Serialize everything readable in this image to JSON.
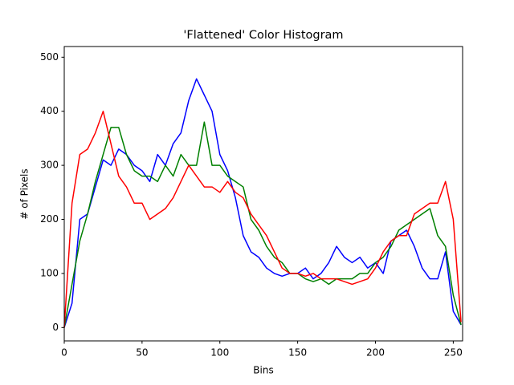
{
  "chart_data": {
    "type": "line",
    "title": "'Flattened' Color Histogram",
    "x_label": "Bins",
    "y_label": "# of Pixels",
    "x": [
      0,
      5,
      10,
      15,
      20,
      25,
      30,
      35,
      40,
      45,
      50,
      55,
      60,
      65,
      70,
      75,
      80,
      85,
      90,
      95,
      100,
      105,
      110,
      115,
      120,
      125,
      130,
      135,
      140,
      145,
      150,
      155,
      160,
      165,
      170,
      175,
      180,
      185,
      190,
      195,
      200,
      205,
      210,
      215,
      220,
      225,
      230,
      235,
      240,
      245,
      250,
      255
    ],
    "series": [
      {
        "color": "#0000ff",
        "values": [
          0,
          45,
          200,
          210,
          260,
          310,
          300,
          330,
          320,
          300,
          290,
          270,
          320,
          300,
          340,
          360,
          420,
          460,
          430,
          400,
          320,
          290,
          240,
          170,
          140,
          130,
          110,
          100,
          95,
          100,
          100,
          110,
          90,
          100,
          120,
          150,
          130,
          120,
          130,
          110,
          120,
          100,
          160,
          170,
          180,
          150,
          110,
          90,
          90,
          140,
          30,
          5
        ]
      },
      {
        "color": "#008000",
        "values": [
          0,
          80,
          160,
          210,
          270,
          320,
          370,
          370,
          320,
          290,
          280,
          280,
          270,
          300,
          280,
          320,
          300,
          300,
          380,
          300,
          300,
          280,
          270,
          260,
          200,
          180,
          150,
          130,
          120,
          100,
          100,
          90,
          85,
          90,
          80,
          90,
          90,
          90,
          100,
          100,
          120,
          130,
          150,
          180,
          190,
          200,
          210,
          220,
          170,
          150,
          60,
          5
        ]
      },
      {
        "color": "#ff0000",
        "values": [
          0,
          230,
          320,
          330,
          360,
          400,
          340,
          280,
          260,
          230,
          230,
          200,
          210,
          220,
          240,
          270,
          300,
          280,
          260,
          260,
          250,
          270,
          250,
          240,
          210,
          190,
          170,
          140,
          110,
          100,
          100,
          95,
          100,
          90,
          90,
          90,
          85,
          80,
          85,
          90,
          110,
          140,
          160,
          170,
          170,
          210,
          220,
          230,
          230,
          270,
          200,
          10
        ]
      }
    ],
    "xlim": [
      0,
      256
    ],
    "xticks": [
      0,
      50,
      100,
      150,
      200,
      250
    ],
    "ylim": [
      -24.75,
      519.75
    ],
    "yticks": [
      0,
      100,
      200,
      300,
      400,
      500
    ]
  }
}
